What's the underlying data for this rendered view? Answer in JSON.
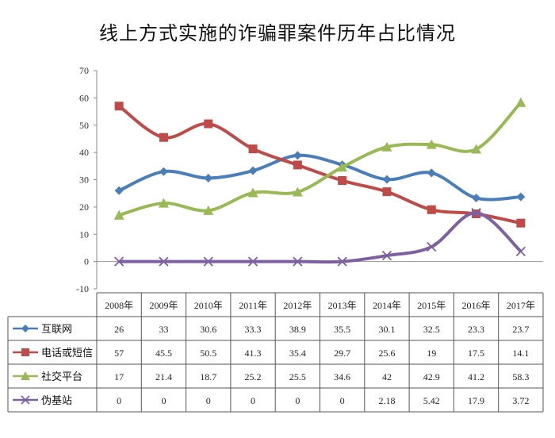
{
  "title": "线上方式实施的诈骗罪案件历年占比情况",
  "chart_data": {
    "type": "line",
    "title": "线上方式实施的诈骗罪案件历年占比情况",
    "categories": [
      "2008年",
      "2009年",
      "2010年",
      "2011年",
      "2012年",
      "2013年",
      "2014年",
      "2015年",
      "2016年",
      "2017年"
    ],
    "ylim": [
      -10,
      70
    ],
    "yticks": [
      -10,
      0,
      10,
      20,
      30,
      40,
      50,
      60,
      70
    ],
    "grid": false,
    "legend": "data-table",
    "series": [
      {
        "name": "互联网",
        "color": "#4a7ebb",
        "marker": "diamond",
        "values": [
          26,
          33,
          30.6,
          33.3,
          38.9,
          35.5,
          30.1,
          32.5,
          23.3,
          23.7
        ]
      },
      {
        "name": "电话或短信",
        "color": "#be4b48",
        "marker": "square",
        "values": [
          57,
          45.5,
          50.5,
          41.3,
          35.4,
          29.7,
          25.6,
          19,
          17.5,
          14.1
        ]
      },
      {
        "name": "社交平台",
        "color": "#98b954",
        "marker": "triangle",
        "values": [
          17,
          21.4,
          18.7,
          25.2,
          25.5,
          34.6,
          42,
          42.9,
          41.2,
          58.3
        ]
      },
      {
        "name": "伪基站",
        "color": "#7d60a0",
        "marker": "x",
        "values": [
          0,
          0,
          0,
          0,
          0,
          0,
          2.18,
          5.42,
          17.9,
          3.72
        ]
      }
    ],
    "table_text": [
      [
        "26",
        "33",
        "30.6",
        "33.3",
        "38.9",
        "35.5",
        "30.1",
        "32.5",
        "23.3",
        "23.7"
      ],
      [
        "57",
        "45.5",
        "50.5",
        "41.3",
        "35.4",
        "29.7",
        "25.6",
        "19",
        "17.5",
        "14.1"
      ],
      [
        "17",
        "21.4",
        "18.7",
        "25.2",
        "25.5",
        "34.6",
        "42",
        "42.9",
        "41.2",
        "58.3"
      ],
      [
        "0",
        "0",
        "0",
        "0",
        "0",
        "0",
        "2.18",
        "5.42",
        "17.9",
        "3.72"
      ]
    ]
  }
}
